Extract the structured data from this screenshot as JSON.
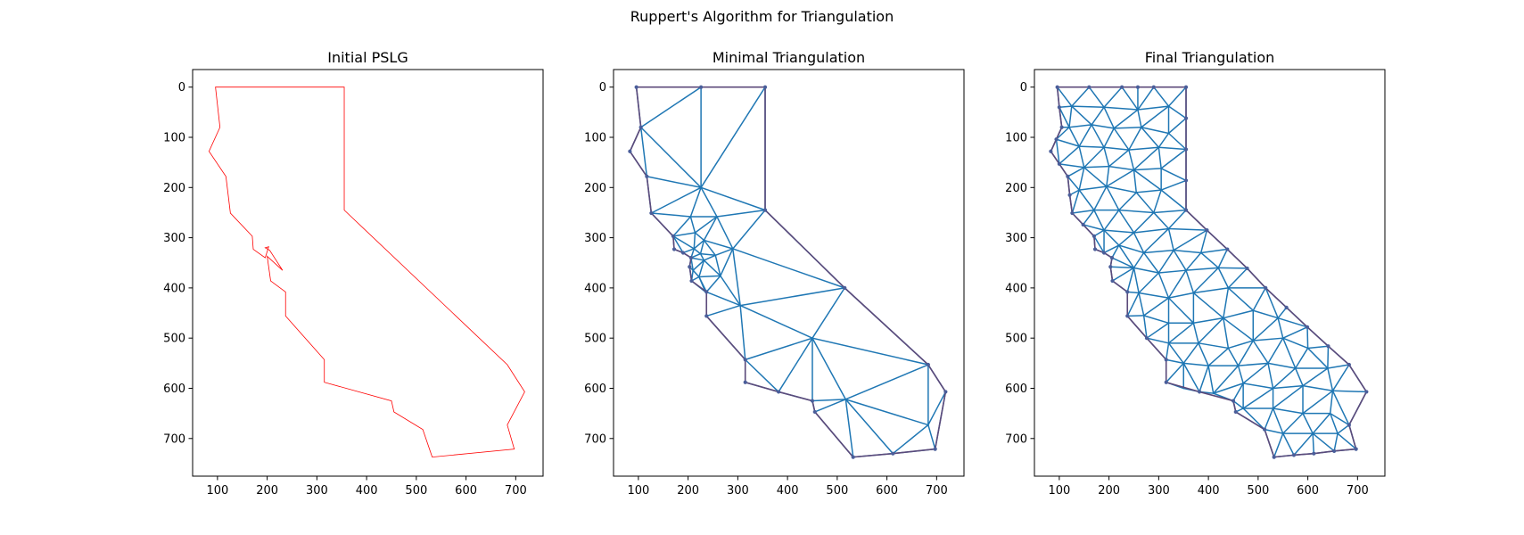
{
  "figure": {
    "title": "Ruppert's Algorithm for Triangulation"
  },
  "colors": {
    "pslg": "#ff0000",
    "mesh": "#1f77b4",
    "boundary": "#5c4a7a",
    "vertex": "#4a5e9a"
  },
  "chart_data": [
    {
      "type": "line",
      "title": "Initial PSLG",
      "xlim": [
        50,
        755
      ],
      "ylim": [
        775,
        -35
      ],
      "xticks": [
        100,
        200,
        300,
        400,
        500,
        600,
        700
      ],
      "yticks": [
        0,
        100,
        200,
        300,
        400,
        500,
        600,
        700
      ],
      "boundary": [
        [
          96,
          0
        ],
        [
          355,
          0
        ],
        [
          355,
          245
        ],
        [
          683,
          553
        ],
        [
          718,
          607
        ],
        [
          683,
          673
        ],
        [
          697,
          721
        ],
        [
          532,
          737
        ],
        [
          513,
          682
        ],
        [
          455,
          647
        ],
        [
          450,
          625
        ],
        [
          315,
          588
        ],
        [
          315,
          543
        ],
        [
          237,
          456
        ],
        [
          237,
          408
        ],
        [
          207,
          386
        ],
        [
          200,
          337
        ],
        [
          231,
          365
        ],
        [
          205,
          325
        ],
        [
          196,
          320
        ],
        [
          203,
          318
        ],
        [
          196,
          340
        ],
        [
          172,
          323
        ],
        [
          170,
          297
        ],
        [
          126,
          251
        ],
        [
          117,
          178
        ],
        [
          83,
          128
        ],
        [
          105,
          80
        ]
      ]
    },
    {
      "type": "line",
      "title": "Minimal Triangulation",
      "xlim": [
        50,
        755
      ],
      "ylim": [
        775,
        -35
      ],
      "xticks": [
        100,
        200,
        300,
        400,
        500,
        600,
        700
      ],
      "yticks": [
        0,
        100,
        200,
        300,
        400,
        500,
        600,
        700
      ],
      "boundary": [
        [
          96,
          0
        ],
        [
          226,
          0
        ],
        [
          355,
          0
        ],
        [
          355,
          245
        ],
        [
          515,
          400
        ],
        [
          683,
          553
        ],
        [
          718,
          607
        ],
        [
          697,
          721
        ],
        [
          612,
          730
        ],
        [
          532,
          737
        ],
        [
          455,
          647
        ],
        [
          450,
          625
        ],
        [
          382,
          607
        ],
        [
          315,
          588
        ],
        [
          315,
          543
        ],
        [
          237,
          456
        ],
        [
          237,
          408
        ],
        [
          207,
          386
        ],
        [
          203,
          358
        ],
        [
          206,
          340
        ],
        [
          190,
          330
        ],
        [
          172,
          323
        ],
        [
          170,
          297
        ],
        [
          126,
          251
        ],
        [
          117,
          178
        ],
        [
          83,
          128
        ],
        [
          105,
          80
        ]
      ],
      "interior": [
        [
          226,
          200
        ],
        [
          205,
          258
        ],
        [
          258,
          258
        ],
        [
          214,
          290
        ],
        [
          232,
          305
        ],
        [
          212,
          322
        ],
        [
          225,
          332
        ],
        [
          232,
          345
        ],
        [
          210,
          365
        ],
        [
          222,
          378
        ],
        [
          255,
          335
        ],
        [
          290,
          322
        ],
        [
          305,
          435
        ],
        [
          450,
          500
        ],
        [
          517,
          622
        ],
        [
          683,
          673
        ],
        [
          355,
          245
        ],
        [
          235,
          408
        ],
        [
          265,
          376
        ]
      ]
    },
    {
      "type": "line",
      "title": "Final Triangulation",
      "xlim": [
        50,
        755
      ],
      "ylim": [
        775,
        -35
      ],
      "xticks": [
        100,
        200,
        300,
        400,
        500,
        600,
        700
      ],
      "yticks": [
        0,
        100,
        200,
        300,
        400,
        500,
        600,
        700
      ],
      "boundary": [
        [
          96,
          0
        ],
        [
          160,
          0
        ],
        [
          226,
          0
        ],
        [
          258,
          0
        ],
        [
          290,
          0
        ],
        [
          355,
          0
        ],
        [
          355,
          62
        ],
        [
          355,
          124
        ],
        [
          355,
          186
        ],
        [
          355,
          245
        ],
        [
          397,
          285
        ],
        [
          438,
          323
        ],
        [
          478,
          361
        ],
        [
          515,
          400
        ],
        [
          557,
          439
        ],
        [
          599,
          478
        ],
        [
          641,
          516
        ],
        [
          683,
          553
        ],
        [
          718,
          607
        ],
        [
          683,
          673
        ],
        [
          697,
          721
        ],
        [
          653,
          725
        ],
        [
          612,
          730
        ],
        [
          572,
          733
        ],
        [
          532,
          737
        ],
        [
          513,
          682
        ],
        [
          455,
          647
        ],
        [
          450,
          625
        ],
        [
          382,
          607
        ],
        [
          315,
          588
        ],
        [
          315,
          543
        ],
        [
          276,
          500
        ],
        [
          237,
          456
        ],
        [
          237,
          408
        ],
        [
          207,
          386
        ],
        [
          203,
          358
        ],
        [
          206,
          340
        ],
        [
          190,
          330
        ],
        [
          172,
          323
        ],
        [
          170,
          297
        ],
        [
          148,
          274
        ],
        [
          126,
          251
        ],
        [
          121,
          215
        ],
        [
          117,
          178
        ],
        [
          100,
          153
        ],
        [
          83,
          128
        ],
        [
          94,
          104
        ],
        [
          105,
          80
        ],
        [
          100,
          40
        ]
      ],
      "interior": [
        [
          125,
          38
        ],
        [
          190,
          40
        ],
        [
          258,
          45
        ],
        [
          320,
          38
        ],
        [
          120,
          80
        ],
        [
          165,
          75
        ],
        [
          210,
          82
        ],
        [
          265,
          80
        ],
        [
          320,
          92
        ],
        [
          140,
          118
        ],
        [
          190,
          120
        ],
        [
          240,
          125
        ],
        [
          300,
          120
        ],
        [
          150,
          160
        ],
        [
          200,
          158
        ],
        [
          250,
          165
        ],
        [
          305,
          162
        ],
        [
          140,
          205
        ],
        [
          195,
          198
        ],
        [
          255,
          210
        ],
        [
          305,
          205
        ],
        [
          170,
          245
        ],
        [
          220,
          245
        ],
        [
          290,
          250
        ],
        [
          190,
          285
        ],
        [
          250,
          290
        ],
        [
          320,
          282
        ],
        [
          220,
          315
        ],
        [
          270,
          330
        ],
        [
          330,
          325
        ],
        [
          385,
          330
        ],
        [
          250,
          360
        ],
        [
          300,
          370
        ],
        [
          355,
          365
        ],
        [
          420,
          360
        ],
        [
          260,
          410
        ],
        [
          320,
          420
        ],
        [
          370,
          410
        ],
        [
          440,
          400
        ],
        [
          270,
          455
        ],
        [
          320,
          470
        ],
        [
          370,
          470
        ],
        [
          430,
          460
        ],
        [
          490,
          445
        ],
        [
          540,
          460
        ],
        [
          320,
          510
        ],
        [
          380,
          510
        ],
        [
          440,
          520
        ],
        [
          490,
          505
        ],
        [
          550,
          500
        ],
        [
          600,
          520
        ],
        [
          350,
          550
        ],
        [
          400,
          555
        ],
        [
          460,
          555
        ],
        [
          520,
          550
        ],
        [
          575,
          560
        ],
        [
          640,
          560
        ],
        [
          350,
          600
        ],
        [
          410,
          610
        ],
        [
          470,
          590
        ],
        [
          530,
          600
        ],
        [
          590,
          595
        ],
        [
          650,
          605
        ],
        [
          470,
          640
        ],
        [
          530,
          640
        ],
        [
          590,
          650
        ],
        [
          645,
          650
        ],
        [
          550,
          690
        ],
        [
          610,
          690
        ],
        [
          660,
          690
        ]
      ]
    }
  ]
}
